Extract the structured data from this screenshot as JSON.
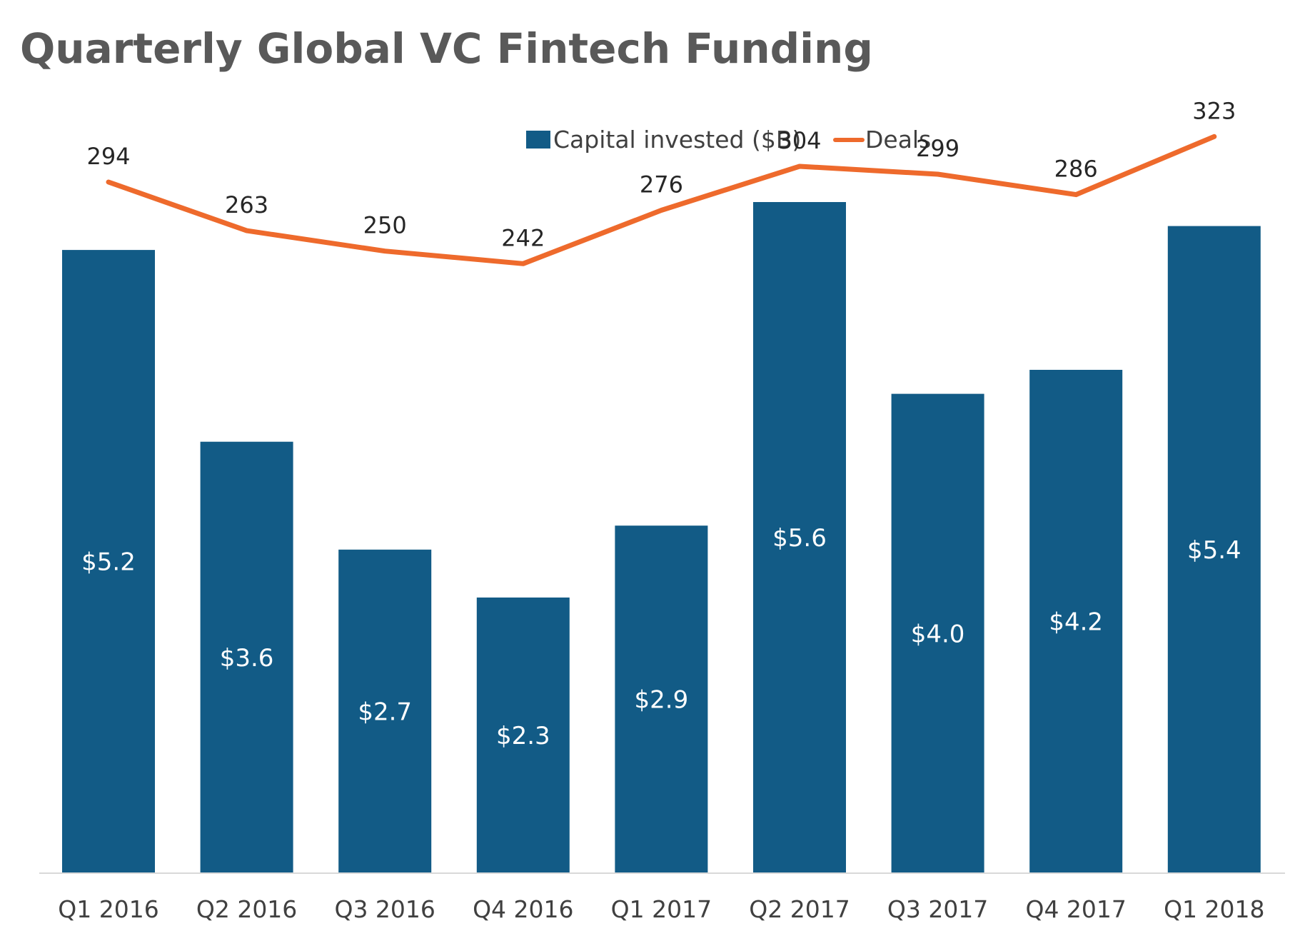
{
  "chart_data": {
    "type": "bar",
    "title": "Quarterly Global VC Fintech Funding",
    "categories": [
      "Q1 2016",
      "Q2 2016",
      "Q3 2016",
      "Q4 2016",
      "Q1 2017",
      "Q2 2017",
      "Q3 2017",
      "Q4 2017",
      "Q1 2018"
    ],
    "series": [
      {
        "name": "Capital invested ($B)",
        "type": "bar",
        "color": "#125B86",
        "values": [
          5.2,
          3.6,
          2.7,
          2.3,
          2.9,
          5.6,
          4.0,
          4.2,
          5.4
        ],
        "labels": [
          "$5.2",
          "$3.6",
          "$2.7",
          "$2.3",
          "$2.9",
          "$5.6",
          "$4.0",
          "$4.2",
          "$5.4"
        ]
      },
      {
        "name": "Deals",
        "type": "line",
        "color": "#EE6A2C",
        "values": [
          294,
          263,
          250,
          242,
          276,
          304,
          299,
          286,
          323
        ],
        "labels": [
          "294",
          "263",
          "250",
          "242",
          "276",
          "304",
          "299",
          "286",
          "323"
        ]
      }
    ],
    "legend_position": "top-right",
    "grid": false,
    "axis_line_color": "#D9D9D9"
  }
}
